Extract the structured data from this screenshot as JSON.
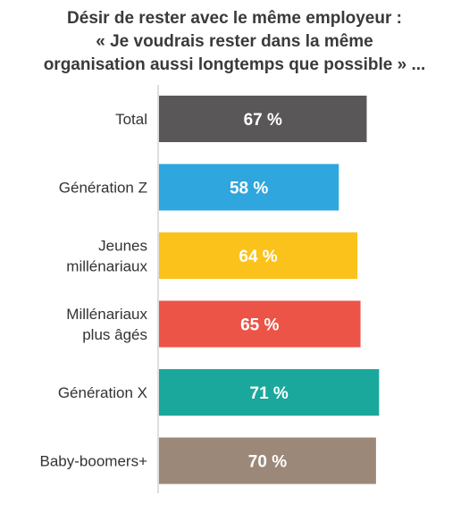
{
  "chart_data": {
    "type": "bar",
    "orientation": "horizontal",
    "title_lines": [
      "Désir de rester avec le même employeur :",
      "« Je voudrais rester dans la même",
      "organisation aussi longtemps que possible » ..."
    ],
    "categories": [
      [
        "Total"
      ],
      [
        "Génération Z"
      ],
      [
        "Jeunes",
        "millénariaux"
      ],
      [
        "Millénariaux",
        "plus âgés"
      ],
      [
        "Génération X"
      ],
      [
        "Baby-boomers+"
      ]
    ],
    "values": [
      67,
      58,
      64,
      65,
      71,
      70
    ],
    "value_labels": [
      "67 %",
      "58 %",
      "64 %",
      "65 %",
      "71 %",
      "70 %"
    ],
    "colors": [
      "#5a5758",
      "#2fa6dd",
      "#fbc21b",
      "#ec5448",
      "#1aa89c",
      "#9c8878"
    ],
    "xlim": [
      0,
      100
    ],
    "grid": false,
    "legend": "none"
  }
}
